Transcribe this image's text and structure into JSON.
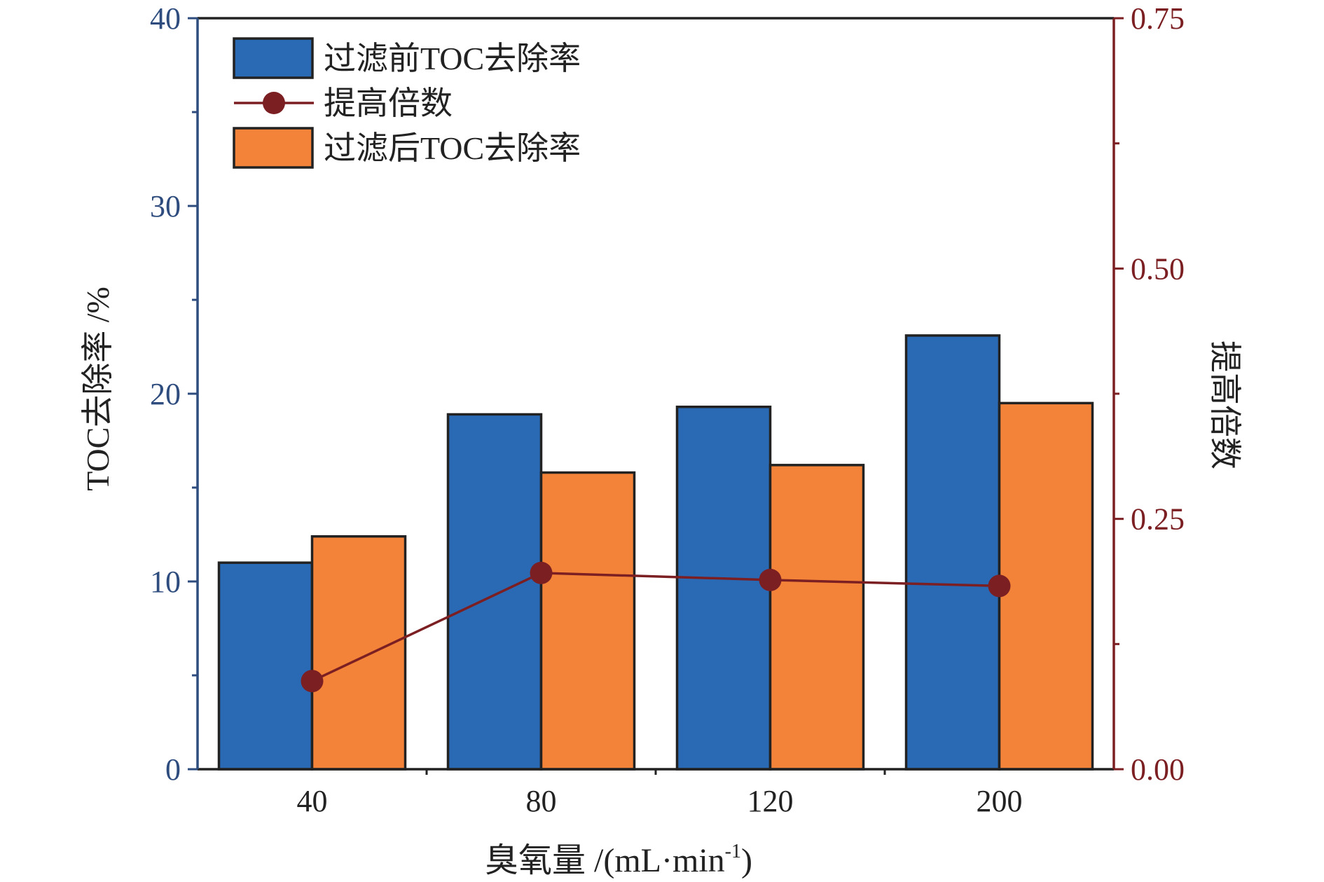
{
  "chart_data": {
    "type": "bar",
    "categories": [
      "40",
      "80",
      "120",
      "200"
    ],
    "series": [
      {
        "name": "过滤前TOC去除率",
        "values": [
          11.0,
          18.9,
          19.3,
          23.1
        ],
        "color": "#2a69b4",
        "axis": "left"
      },
      {
        "name": "过滤后TOC去除率",
        "values": [
          12.4,
          15.8,
          16.2,
          19.5
        ],
        "color": "#f38338",
        "axis": "left"
      }
    ],
    "line_series": [
      {
        "name": "提高倍数",
        "values": [
          0.088,
          0.196,
          0.189,
          0.183
        ],
        "color": "#7b1f22",
        "axis": "right"
      }
    ],
    "xlabel": "臭氧量 /(mL·min",
    "xlabel_superscript": "-1",
    "xlabel_suffix": ")",
    "ylabel": "TOC去除率 /%",
    "ylabel_right": "提高倍数",
    "ylim": [
      0,
      40
    ],
    "y_ticks": [
      "0",
      "10",
      "20",
      "30",
      "40"
    ],
    "ylim_right": [
      0,
      0.75
    ],
    "y_ticks_right": [
      "0.00",
      "0.25",
      "0.50",
      "0.75"
    ],
    "left_axis_color": "#2e4d7e",
    "right_axis_color": "#7b1f22",
    "legend_position": "top-left",
    "grid": false
  }
}
